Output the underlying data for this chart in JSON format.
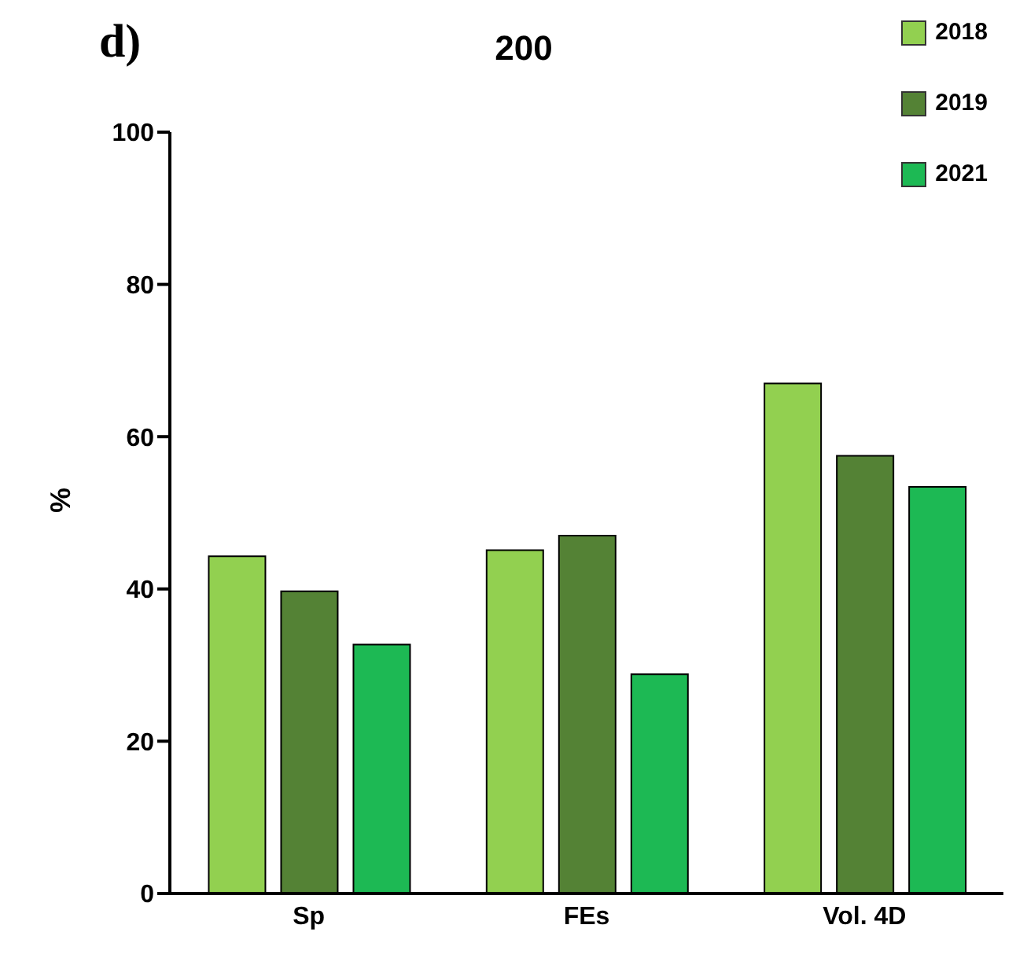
{
  "chart_data": {
    "type": "bar",
    "title": "200",
    "ylabel": "%",
    "annotations": [
      "d)"
    ],
    "categories": [
      "Sp",
      "FEs",
      "Vol. 4D"
    ],
    "series": [
      {
        "name": "2018",
        "color": "#92d050",
        "values": [
          44.3,
          45.1,
          67
        ]
      },
      {
        "name": "2019",
        "color": "#548235",
        "values": [
          39.7,
          47,
          57.5
        ]
      },
      {
        "name": "2021",
        "color": "#1db954",
        "values": [
          32.7,
          28.8,
          53.4
        ]
      }
    ],
    "ylim": [
      0,
      100
    ],
    "yticks": [
      0,
      20,
      40,
      60,
      80,
      100
    ],
    "legend": "top right"
  }
}
